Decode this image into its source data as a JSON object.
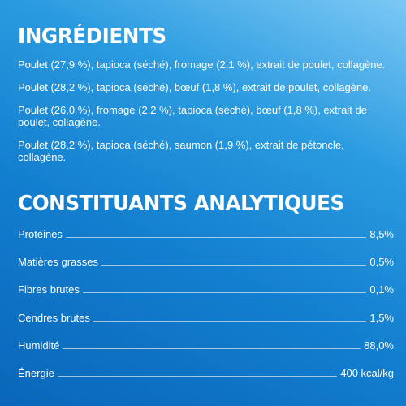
{
  "ingredients": {
    "title": "INGRÉDIENTS",
    "items": [
      "Poulet (27,9 %), tapioca (séché), fromage (2,1 %), extrait de poulet, collagène.",
      "Poulet (28,2 %), tapioca (séché), bœuf (1,8 %), extrait de poulet, collagène.",
      "Poulet (26,0 %), fromage (2,2 %), tapioca (séché), bœuf (1,8 %), extrait de poulet, collagène.",
      "Poulet (28,2 %), tapioca (séché), saumon (1,9 %), extrait de pétoncle, collagène."
    ]
  },
  "analytical": {
    "title": "CONSTITUANTS ANALYTIQUES",
    "rows": [
      {
        "label": "Protéines",
        "value": "8,5%"
      },
      {
        "label": "Matières grasses",
        "value": "0,5%"
      },
      {
        "label": "Fibres brutes",
        "value": "0,1%"
      },
      {
        "label": "Cendres brutes",
        "value": "1,5%"
      },
      {
        "label": "Humidité",
        "value": "88,0%"
      },
      {
        "label": "Énergie",
        "value": "400 kcal/kg"
      }
    ]
  }
}
